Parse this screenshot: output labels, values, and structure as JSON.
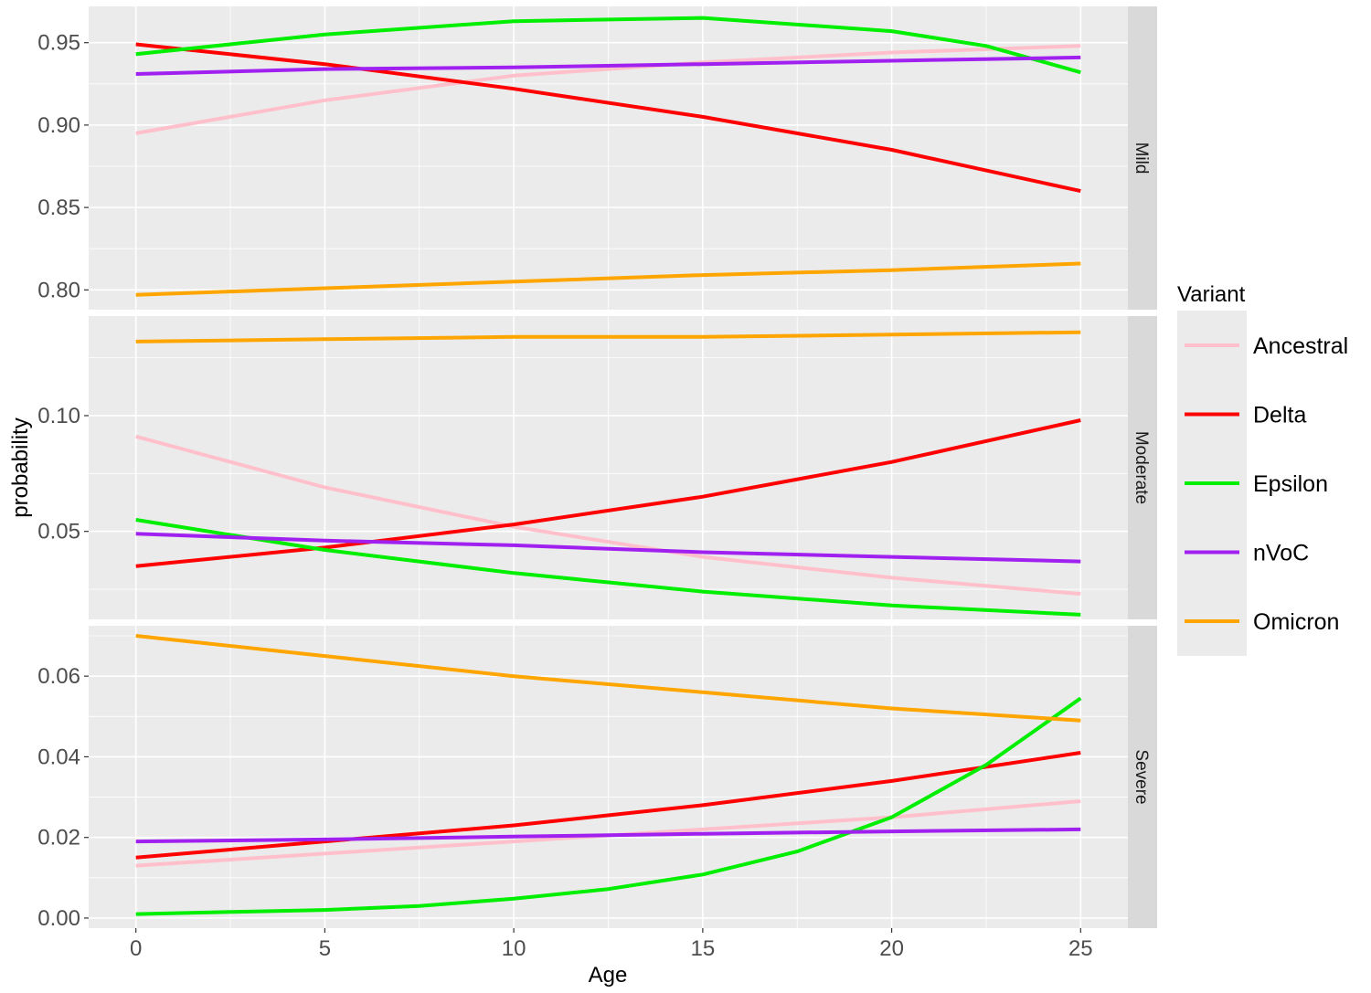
{
  "chart_data": {
    "type": "line",
    "xlabel": "Age",
    "ylabel": "probability",
    "x_ticks": [
      0,
      5,
      10,
      15,
      20,
      25
    ],
    "xlim": [
      -1.25,
      26.25
    ],
    "legend": {
      "title": "Variant",
      "position": "right",
      "entries": [
        "Ancestral",
        "Delta",
        "Epsilon",
        "nVoC",
        "Omicron"
      ]
    },
    "colors": {
      "Ancestral": "#ffc0cb",
      "Delta": "#ff0000",
      "Epsilon": "#00ee00",
      "nVoC": "#a020f0",
      "Omicron": "#ffa500"
    },
    "panels": [
      {
        "label": "Mild",
        "ylim": [
          0.788,
          0.972
        ],
        "y_ticks": [
          0.8,
          0.85,
          0.9,
          0.95
        ],
        "y_tick_labels": [
          "0.80",
          "0.85",
          "0.90",
          "0.95"
        ],
        "series": [
          {
            "name": "Ancestral",
            "x": [
              0,
              5,
              10,
              15,
              20,
              25
            ],
            "y": [
              0.895,
              0.915,
              0.93,
              0.938,
              0.944,
              0.948
            ]
          },
          {
            "name": "Delta",
            "x": [
              0,
              5,
              10,
              15,
              20,
              25
            ],
            "y": [
              0.949,
              0.937,
              0.922,
              0.905,
              0.885,
              0.86
            ]
          },
          {
            "name": "Epsilon",
            "x": [
              0,
              5,
              10,
              15,
              20,
              22.5,
              25
            ],
            "y": [
              0.943,
              0.955,
              0.963,
              0.965,
              0.957,
              0.948,
              0.932
            ]
          },
          {
            "name": "nVoC",
            "x": [
              0,
              5,
              10,
              15,
              20,
              25
            ],
            "y": [
              0.931,
              0.934,
              0.935,
              0.937,
              0.939,
              0.941
            ]
          },
          {
            "name": "Omicron",
            "x": [
              0,
              5,
              10,
              15,
              20,
              25
            ],
            "y": [
              0.797,
              0.801,
              0.805,
              0.809,
              0.812,
              0.816
            ]
          }
        ]
      },
      {
        "label": "Moderate",
        "ylim": [
          0.012,
          0.143
        ],
        "y_ticks": [
          0.05,
          0.1
        ],
        "y_tick_labels": [
          "0.05",
          "0.10"
        ],
        "series": [
          {
            "name": "Ancestral",
            "x": [
              0,
              5,
              10,
              15,
              20,
              25
            ],
            "y": [
              0.091,
              0.069,
              0.052,
              0.039,
              0.03,
              0.023
            ]
          },
          {
            "name": "Delta",
            "x": [
              0,
              5,
              10,
              15,
              20,
              25
            ],
            "y": [
              0.035,
              0.043,
              0.053,
              0.065,
              0.08,
              0.098
            ]
          },
          {
            "name": "Epsilon",
            "x": [
              0,
              5,
              10,
              15,
              20,
              25
            ],
            "y": [
              0.055,
              0.042,
              0.032,
              0.024,
              0.018,
              0.014
            ]
          },
          {
            "name": "nVoC",
            "x": [
              0,
              5,
              10,
              15,
              20,
              25
            ],
            "y": [
              0.049,
              0.046,
              0.044,
              0.041,
              0.039,
              0.037
            ]
          },
          {
            "name": "Omicron",
            "x": [
              0,
              5,
              10,
              15,
              20,
              25
            ],
            "y": [
              0.132,
              0.133,
              0.134,
              0.134,
              0.135,
              0.136
            ]
          }
        ]
      },
      {
        "label": "Severe",
        "ylim": [
          -0.0025,
          0.0725
        ],
        "y_ticks": [
          0.0,
          0.02,
          0.04,
          0.06
        ],
        "y_tick_labels": [
          "0.00",
          "0.02",
          "0.04",
          "0.06"
        ],
        "series": [
          {
            "name": "Ancestral",
            "x": [
              0,
              5,
              10,
              15,
              20,
              25
            ],
            "y": [
              0.013,
              0.016,
              0.019,
              0.022,
              0.025,
              0.029
            ]
          },
          {
            "name": "Delta",
            "x": [
              0,
              5,
              10,
              15,
              20,
              25
            ],
            "y": [
              0.015,
              0.019,
              0.023,
              0.028,
              0.034,
              0.041
            ]
          },
          {
            "name": "Epsilon",
            "x": [
              0,
              2.5,
              5,
              7.5,
              10,
              12.5,
              15,
              17.5,
              20,
              22.5,
              25
            ],
            "y": [
              0.001,
              0.0015,
              0.002,
              0.003,
              0.0048,
              0.0072,
              0.0108,
              0.0165,
              0.025,
              0.038,
              0.0545
            ]
          },
          {
            "name": "nVoC",
            "x": [
              0,
              5,
              10,
              15,
              20,
              25
            ],
            "y": [
              0.019,
              0.0195,
              0.0202,
              0.0209,
              0.0215,
              0.022
            ]
          },
          {
            "name": "Omicron",
            "x": [
              0,
              5,
              10,
              15,
              20,
              25
            ],
            "y": [
              0.07,
              0.065,
              0.06,
              0.056,
              0.052,
              0.049
            ]
          }
        ]
      }
    ]
  }
}
